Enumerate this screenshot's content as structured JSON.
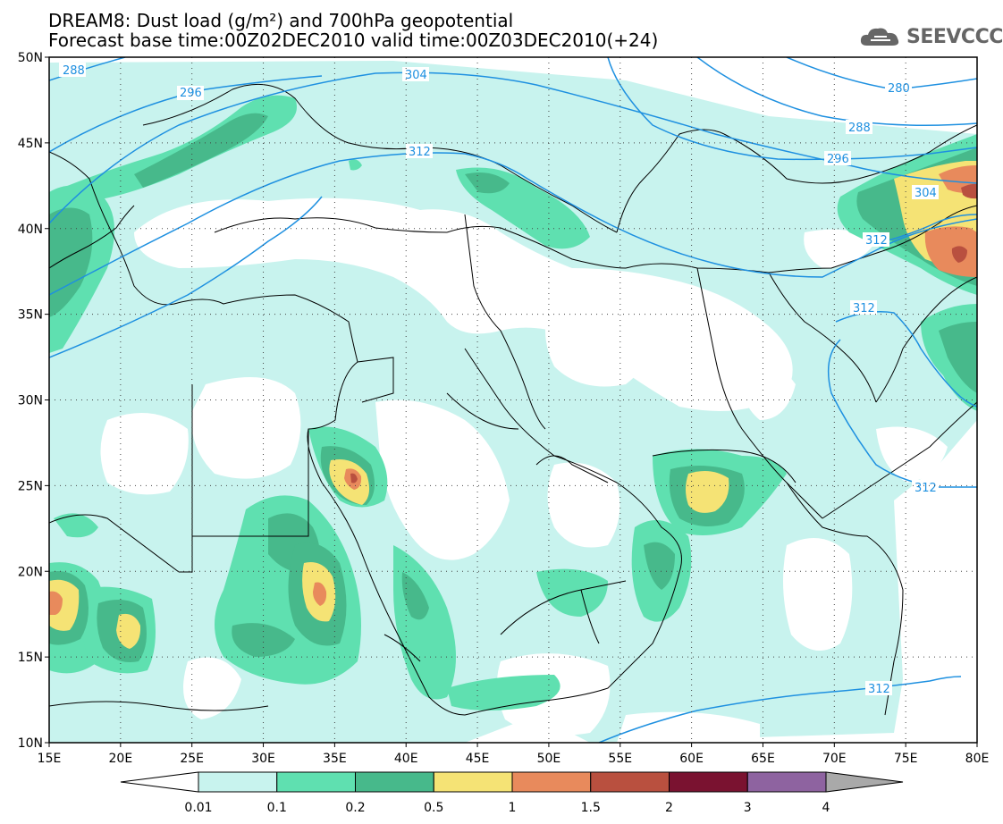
{
  "header": {
    "title_line1": "DREAM8: Dust load (g/m²) and 700hPa geopotential",
    "title_line2": "Forecast base time:00Z02DEC2010 valid time:00Z03DEC2010(+24)",
    "logo_text": "SEEVCCC"
  },
  "map": {
    "lon_range": [
      15,
      80
    ],
    "lat_range": [
      10,
      50
    ],
    "lon_ticks": [
      "15E",
      "20E",
      "25E",
      "30E",
      "35E",
      "40E",
      "45E",
      "50E",
      "55E",
      "60E",
      "65E",
      "70E",
      "75E",
      "80E"
    ],
    "lat_ticks": [
      "10N",
      "15N",
      "20N",
      "25N",
      "30N",
      "35N",
      "40N",
      "45N",
      "50N"
    ],
    "contour_labels": [
      "288",
      "296",
      "304",
      "312",
      "280",
      "288",
      "296",
      "304",
      "312",
      "312",
      "312",
      "312"
    ]
  },
  "colorbar": {
    "levels": [
      "0.01",
      "0.1",
      "0.2",
      "0.5",
      "1",
      "1.5",
      "2",
      "3",
      "4"
    ],
    "colors": [
      "#c8f3ee",
      "#5fe0b0",
      "#47b98b",
      "#f5e375",
      "#e88a5c",
      "#b9503f",
      "#7a1230",
      "#8e63a0"
    ],
    "under_color": "#ffffff",
    "over_color": "#a9a9a9"
  },
  "colors": {
    "geopotential_line": "#1e90e0",
    "coast": "#000000"
  }
}
